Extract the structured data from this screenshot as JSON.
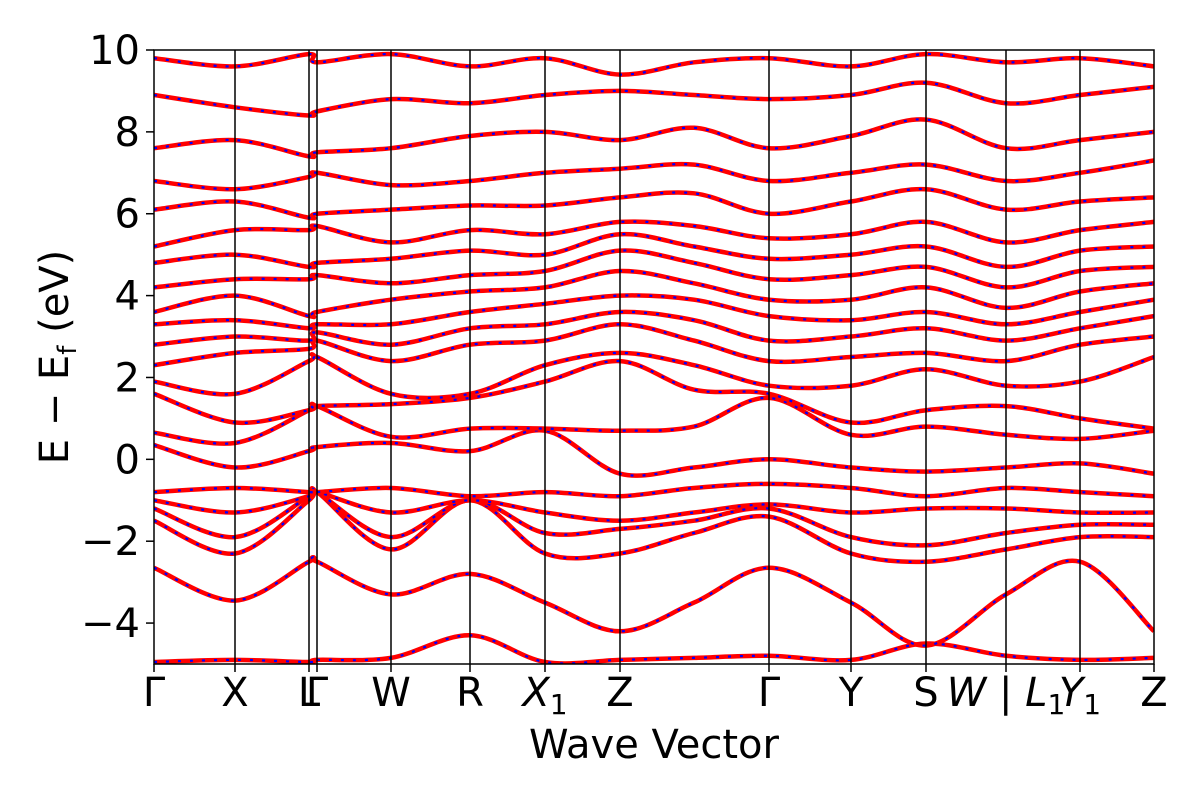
{
  "chart_data": {
    "type": "line",
    "title": "",
    "xlabel": "Wave Vector",
    "ylabel_main": "E − E",
    "ylabel_sub": "f",
    "ylabel_unit": " (eV)",
    "ylim": [
      -5,
      10
    ],
    "yticks": [
      10,
      8,
      6,
      4,
      2,
      0,
      -2,
      -4
    ],
    "ytick_labels": [
      "10",
      "8",
      "6",
      "4",
      "2",
      "0",
      "−2",
      "−4"
    ],
    "kpath_positions": [
      0,
      0.081,
      0.155,
      0.163,
      0.237,
      0.316,
      0.391,
      0.466,
      0.615,
      0.697,
      0.772,
      0.852,
      0.926,
      1.0
    ],
    "kpath_labels": [
      "Γ",
      "X",
      "L",
      "Γ",
      "W",
      "R",
      "X",
      "Z",
      "Γ",
      "Y",
      "S",
      "W | L",
      "Y",
      "Z"
    ],
    "kpath_label_subs": [
      "",
      "",
      "",
      "",
      "",
      "",
      "1",
      "",
      "",
      "",
      "",
      "1",
      "1",
      ""
    ],
    "kpath_label_italic": [
      false,
      false,
      false,
      false,
      false,
      false,
      true,
      false,
      false,
      false,
      false,
      true,
      true,
      false
    ],
    "series": [
      {
        "color": "#ff0000",
        "style": "solid"
      },
      {
        "color": "#0000ff",
        "style": "dotted"
      }
    ],
    "bands": [
      {
        "x": [
          0,
          0.081,
          0.155,
          0.163,
          0.237,
          0.316,
          0.391,
          0.466,
          0.54,
          0.615,
          0.697,
          0.772,
          0.852,
          0.926,
          1.0
        ],
        "y": [
          -4.95,
          -4.9,
          -4.95,
          -4.9,
          -4.85,
          -4.3,
          -4.95,
          -4.9,
          -4.85,
          -4.8,
          -4.9,
          -4.5,
          -4.8,
          -4.9,
          -4.85
        ]
      },
      {
        "x": [
          0,
          0.081,
          0.155,
          0.163,
          0.237,
          0.316,
          0.391,
          0.466,
          0.54,
          0.615,
          0.697,
          0.772,
          0.852,
          0.926,
          1.0
        ],
        "y": [
          -2.65,
          -3.45,
          -2.5,
          -2.5,
          -3.3,
          -2.8,
          -3.5,
          -4.2,
          -3.5,
          -2.65,
          -3.5,
          -4.55,
          -3.3,
          -2.5,
          -4.2
        ]
      },
      {
        "x": [
          0,
          0.081,
          0.155,
          0.163,
          0.237,
          0.316,
          0.391,
          0.466,
          0.54,
          0.615,
          0.697,
          0.772,
          0.852,
          0.926,
          1.0
        ],
        "y": [
          -1.5,
          -2.3,
          -1.0,
          -0.8,
          -2.2,
          -1.0,
          -2.3,
          -2.3,
          -1.8,
          -1.4,
          -2.3,
          -2.5,
          -2.2,
          -1.9,
          -1.9
        ]
      },
      {
        "x": [
          0,
          0.081,
          0.155,
          0.163,
          0.237,
          0.316,
          0.391,
          0.466,
          0.54,
          0.615,
          0.697,
          0.772,
          0.852,
          0.926,
          1.0
        ],
        "y": [
          -1.2,
          -1.9,
          -0.9,
          -0.8,
          -1.9,
          -1.0,
          -1.8,
          -1.7,
          -1.5,
          -1.2,
          -1.9,
          -2.1,
          -1.8,
          -1.6,
          -1.6
        ]
      },
      {
        "x": [
          0,
          0.081,
          0.155,
          0.163,
          0.237,
          0.316,
          0.391,
          0.466,
          0.54,
          0.615,
          0.697,
          0.772,
          0.852,
          0.926,
          1.0
        ],
        "y": [
          -1.0,
          -1.3,
          -0.9,
          -0.8,
          -1.3,
          -1.0,
          -1.3,
          -1.5,
          -1.3,
          -1.1,
          -1.3,
          -1.2,
          -1.2,
          -1.3,
          -1.3
        ]
      },
      {
        "x": [
          0,
          0.081,
          0.155,
          0.163,
          0.237,
          0.316,
          0.391,
          0.466,
          0.54,
          0.615,
          0.697,
          0.772,
          0.852,
          0.926,
          1.0
        ],
        "y": [
          -0.8,
          -0.7,
          -0.8,
          -0.8,
          -0.7,
          -0.9,
          -0.8,
          -0.9,
          -0.7,
          -0.6,
          -0.7,
          -0.9,
          -0.7,
          -0.8,
          -0.9
        ]
      },
      {
        "x": [
          0,
          0.081,
          0.155,
          0.163,
          0.237,
          0.316,
          0.391,
          0.466,
          0.54,
          0.615,
          0.697,
          0.772,
          0.852,
          0.926,
          1.0
        ],
        "y": [
          0.35,
          -0.2,
          0.2,
          0.3,
          0.4,
          0.2,
          0.7,
          -0.35,
          -0.2,
          0.0,
          -0.2,
          -0.3,
          -0.2,
          -0.1,
          -0.35
        ]
      },
      {
        "x": [
          0,
          0.081,
          0.155,
          0.163,
          0.237,
          0.316,
          0.391,
          0.466,
          0.54,
          0.615,
          0.697,
          0.772,
          0.852,
          0.926,
          1.0
        ],
        "y": [
          0.65,
          0.4,
          1.2,
          1.3,
          0.55,
          0.75,
          0.75,
          0.7,
          0.8,
          1.5,
          0.6,
          0.8,
          0.6,
          0.5,
          0.7
        ]
      },
      {
        "x": [
          0,
          0.081,
          0.155,
          0.163,
          0.237,
          0.316,
          0.391,
          0.466,
          0.54,
          0.615,
          0.697,
          0.772,
          0.852,
          0.926,
          1.0
        ],
        "y": [
          1.6,
          0.9,
          1.2,
          1.3,
          1.35,
          1.5,
          1.9,
          2.4,
          1.7,
          1.6,
          0.9,
          1.2,
          1.3,
          1.0,
          0.75
        ]
      },
      {
        "x": [
          0,
          0.081,
          0.155,
          0.163,
          0.237,
          0.316,
          0.391,
          0.466,
          0.54,
          0.615,
          0.697,
          0.772,
          0.852,
          0.926,
          1.0
        ],
        "y": [
          1.9,
          1.6,
          2.4,
          2.5,
          1.6,
          1.6,
          2.3,
          2.6,
          2.3,
          1.8,
          1.8,
          2.2,
          1.8,
          1.9,
          2.5
        ]
      },
      {
        "x": [
          0,
          0.081,
          0.155,
          0.163,
          0.237,
          0.316,
          0.391,
          0.466,
          0.54,
          0.615,
          0.697,
          0.772,
          0.852,
          0.926,
          1.0
        ],
        "y": [
          2.3,
          2.6,
          2.7,
          2.9,
          2.4,
          2.8,
          2.9,
          3.3,
          2.9,
          2.4,
          2.5,
          2.6,
          2.4,
          2.8,
          3.0
        ]
      },
      {
        "x": [
          0,
          0.081,
          0.155,
          0.163,
          0.237,
          0.316,
          0.391,
          0.466,
          0.54,
          0.615,
          0.697,
          0.772,
          0.852,
          0.926,
          1.0
        ],
        "y": [
          2.8,
          3.0,
          2.9,
          3.1,
          2.8,
          3.2,
          3.3,
          3.6,
          3.4,
          2.9,
          3.0,
          3.2,
          2.9,
          3.2,
          3.5
        ]
      },
      {
        "x": [
          0,
          0.081,
          0.155,
          0.163,
          0.237,
          0.316,
          0.391,
          0.466,
          0.54,
          0.615,
          0.697,
          0.772,
          0.852,
          0.926,
          1.0
        ],
        "y": [
          3.3,
          3.4,
          3.2,
          3.3,
          3.3,
          3.6,
          3.8,
          4.0,
          3.9,
          3.5,
          3.4,
          3.6,
          3.3,
          3.6,
          3.9
        ]
      },
      {
        "x": [
          0,
          0.081,
          0.155,
          0.163,
          0.237,
          0.316,
          0.391,
          0.466,
          0.54,
          0.615,
          0.697,
          0.772,
          0.852,
          0.926,
          1.0
        ],
        "y": [
          3.6,
          4.0,
          3.5,
          3.6,
          3.9,
          4.1,
          4.2,
          4.6,
          4.3,
          3.9,
          3.9,
          4.2,
          3.7,
          4.1,
          4.3
        ]
      },
      {
        "x": [
          0,
          0.081,
          0.155,
          0.163,
          0.237,
          0.316,
          0.391,
          0.466,
          0.54,
          0.615,
          0.697,
          0.772,
          0.852,
          0.926,
          1.0
        ],
        "y": [
          4.2,
          4.4,
          4.4,
          4.5,
          4.3,
          4.5,
          4.6,
          5.1,
          4.8,
          4.4,
          4.5,
          4.7,
          4.2,
          4.6,
          4.7
        ]
      },
      {
        "x": [
          0,
          0.081,
          0.155,
          0.163,
          0.237,
          0.316,
          0.391,
          0.466,
          0.54,
          0.615,
          0.697,
          0.772,
          0.852,
          0.926,
          1.0
        ],
        "y": [
          4.8,
          5.0,
          4.7,
          4.8,
          4.9,
          5.1,
          5.0,
          5.5,
          5.2,
          4.9,
          5.0,
          5.2,
          4.7,
          5.1,
          5.2
        ]
      },
      {
        "x": [
          0,
          0.081,
          0.155,
          0.163,
          0.237,
          0.316,
          0.391,
          0.466,
          0.54,
          0.615,
          0.697,
          0.772,
          0.852,
          0.926,
          1.0
        ],
        "y": [
          5.2,
          5.6,
          5.6,
          5.7,
          5.3,
          5.6,
          5.5,
          5.8,
          5.7,
          5.4,
          5.5,
          5.8,
          5.3,
          5.6,
          5.8
        ]
      },
      {
        "x": [
          0,
          0.081,
          0.155,
          0.163,
          0.237,
          0.316,
          0.391,
          0.466,
          0.54,
          0.615,
          0.697,
          0.772,
          0.852,
          0.926,
          1.0
        ],
        "y": [
          6.1,
          6.3,
          5.9,
          6.0,
          6.1,
          6.2,
          6.2,
          6.4,
          6.5,
          6.0,
          6.3,
          6.6,
          6.1,
          6.3,
          6.4
        ]
      },
      {
        "x": [
          0,
          0.081,
          0.155,
          0.163,
          0.237,
          0.316,
          0.391,
          0.466,
          0.54,
          0.615,
          0.697,
          0.772,
          0.852,
          0.926,
          1.0
        ],
        "y": [
          6.8,
          6.6,
          6.9,
          7.0,
          6.7,
          6.8,
          7.0,
          7.1,
          7.2,
          6.8,
          7.0,
          7.2,
          6.8,
          7.0,
          7.3
        ]
      },
      {
        "x": [
          0,
          0.081,
          0.155,
          0.163,
          0.237,
          0.316,
          0.391,
          0.466,
          0.54,
          0.615,
          0.697,
          0.772,
          0.852,
          0.926,
          1.0
        ],
        "y": [
          7.6,
          7.8,
          7.4,
          7.5,
          7.6,
          7.9,
          8.0,
          7.8,
          8.1,
          7.6,
          7.9,
          8.3,
          7.6,
          7.8,
          8.0
        ]
      },
      {
        "x": [
          0,
          0.081,
          0.155,
          0.163,
          0.237,
          0.316,
          0.391,
          0.466,
          0.54,
          0.615,
          0.697,
          0.772,
          0.852,
          0.926,
          1.0
        ],
        "y": [
          8.9,
          8.6,
          8.4,
          8.5,
          8.8,
          8.7,
          8.9,
          9.0,
          8.9,
          8.8,
          8.9,
          9.2,
          8.7,
          8.9,
          9.1
        ]
      },
      {
        "x": [
          0,
          0.081,
          0.155,
          0.163,
          0.237,
          0.316,
          0.391,
          0.466,
          0.54,
          0.615,
          0.697,
          0.772,
          0.852,
          0.926,
          1.0
        ],
        "y": [
          9.8,
          9.6,
          9.9,
          9.7,
          9.9,
          9.6,
          9.8,
          9.4,
          9.7,
          9.8,
          9.6,
          9.9,
          9.7,
          9.8,
          9.6
        ]
      }
    ]
  }
}
